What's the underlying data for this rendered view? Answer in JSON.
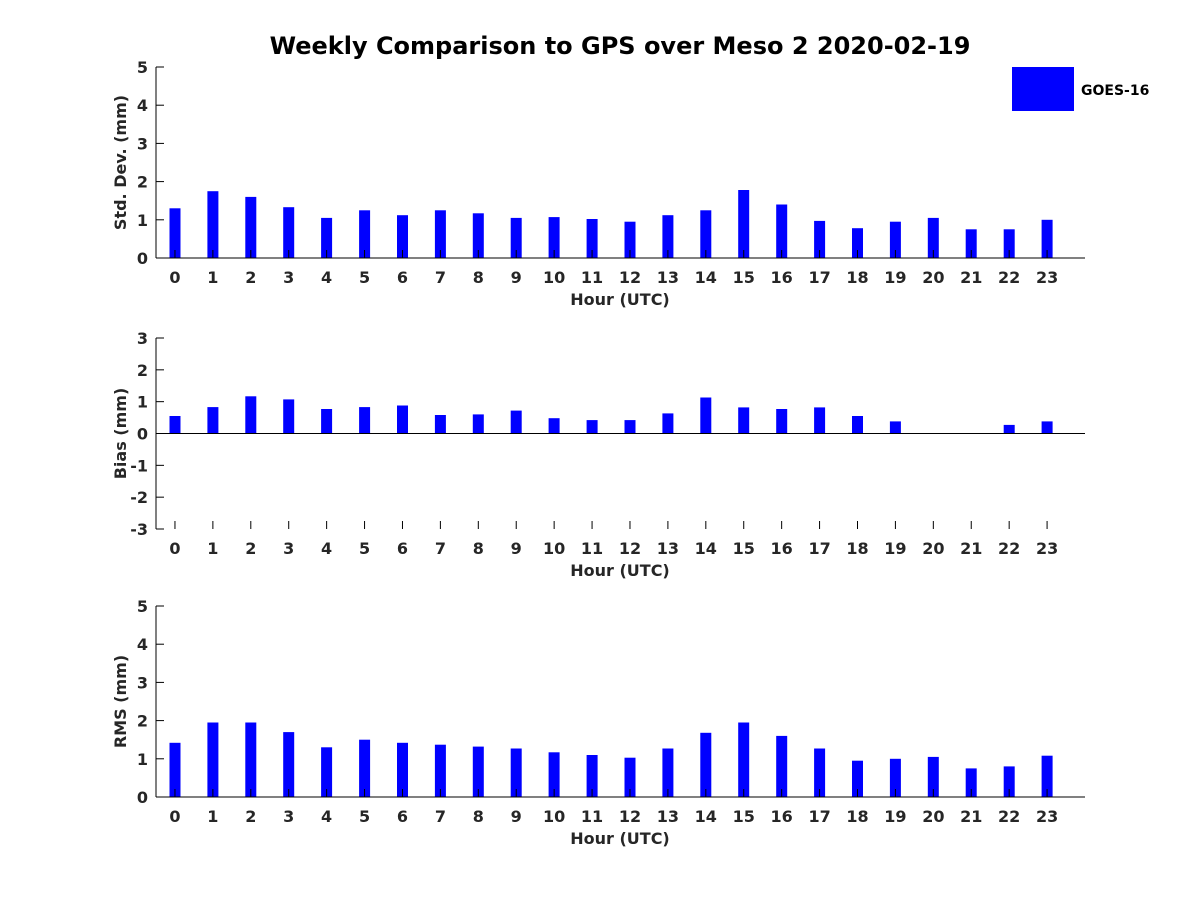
{
  "chart_data": {
    "type": "bar",
    "title": "Weekly Comparison to GPS over Meso 2 2020-02-19",
    "legend": {
      "entries": [
        "GOES-16"
      ],
      "placement": "top-right"
    },
    "series_color": "#0000ff",
    "categories": [
      "0",
      "1",
      "2",
      "3",
      "4",
      "5",
      "6",
      "7",
      "8",
      "9",
      "10",
      "11",
      "12",
      "13",
      "14",
      "15",
      "16",
      "17",
      "18",
      "19",
      "20",
      "21",
      "22",
      "23"
    ],
    "panels": [
      {
        "id": "stddev",
        "ylabel": "Std. Dev. (mm)",
        "xlabel": "Hour (UTC)",
        "ylim": [
          0,
          5
        ],
        "yticks": [
          "0",
          "1",
          "2",
          "3",
          "4",
          "5"
        ],
        "series": [
          {
            "name": "GOES-16",
            "values": [
              1.3,
              1.75,
              1.6,
              1.33,
              1.05,
              1.25,
              1.12,
              1.25,
              1.17,
              1.05,
              1.07,
              1.02,
              0.95,
              1.12,
              1.25,
              1.78,
              1.4,
              0.97,
              0.78,
              0.95,
              1.05,
              0.75,
              0.75,
              1.0
            ]
          }
        ]
      },
      {
        "id": "bias",
        "ylabel": "Bias (mm)",
        "xlabel": "Hour (UTC)",
        "ylim": [
          -3,
          3
        ],
        "yticks": [
          "-3",
          "-2",
          "-1",
          "0",
          "1",
          "2",
          "3"
        ],
        "series": [
          {
            "name": "GOES-16",
            "values": [
              0.55,
              0.83,
              1.17,
              1.07,
              0.77,
              0.83,
              0.88,
              0.58,
              0.6,
              0.72,
              0.48,
              0.42,
              0.42,
              0.63,
              1.13,
              0.82,
              0.77,
              0.82,
              0.55,
              0.38,
              0.0,
              0.0,
              0.27,
              0.38
            ]
          }
        ]
      },
      {
        "id": "rms",
        "ylabel": "RMS (mm)",
        "xlabel": "Hour (UTC)",
        "ylim": [
          0,
          5
        ],
        "yticks": [
          "0",
          "1",
          "2",
          "3",
          "4",
          "5"
        ],
        "series": [
          {
            "name": "GOES-16",
            "values": [
              1.42,
              1.95,
              1.95,
              1.7,
              1.3,
              1.5,
              1.42,
              1.37,
              1.32,
              1.27,
              1.17,
              1.1,
              1.03,
              1.27,
              1.68,
              1.95,
              1.6,
              1.27,
              0.95,
              1.0,
              1.05,
              0.75,
              0.8,
              1.08
            ]
          }
        ]
      }
    ]
  }
}
